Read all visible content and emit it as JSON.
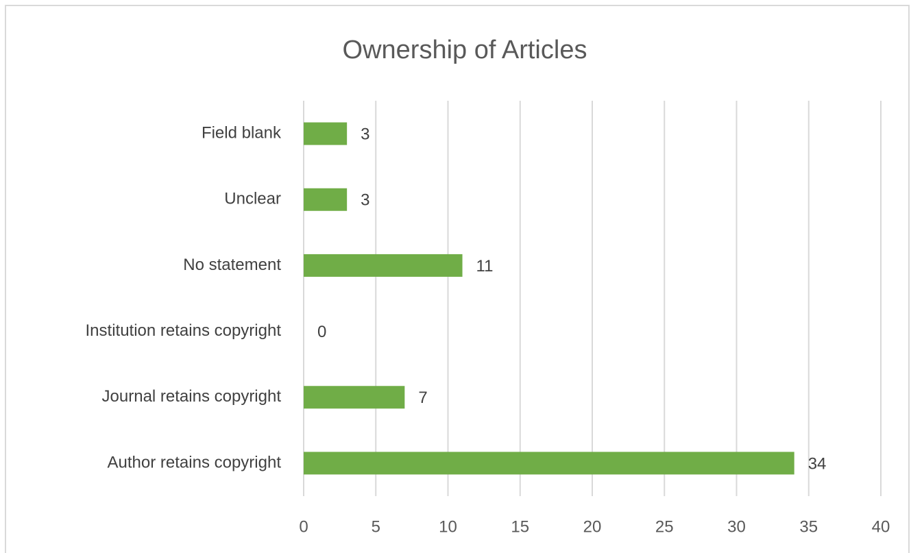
{
  "chart_data": {
    "type": "bar",
    "orientation": "horizontal",
    "title": "Ownership of Articles",
    "categories": [
      "Field blank",
      "Unclear",
      "No statement",
      "Institution retains copyright",
      "Journal retains copyright",
      "Author retains copyright"
    ],
    "values": [
      3,
      3,
      11,
      0,
      7,
      34
    ],
    "color": "#70ad47",
    "xlim": [
      0,
      40
    ],
    "xticks": [
      0,
      5,
      10,
      15,
      20,
      25,
      30,
      35,
      40
    ],
    "grid": true
  }
}
